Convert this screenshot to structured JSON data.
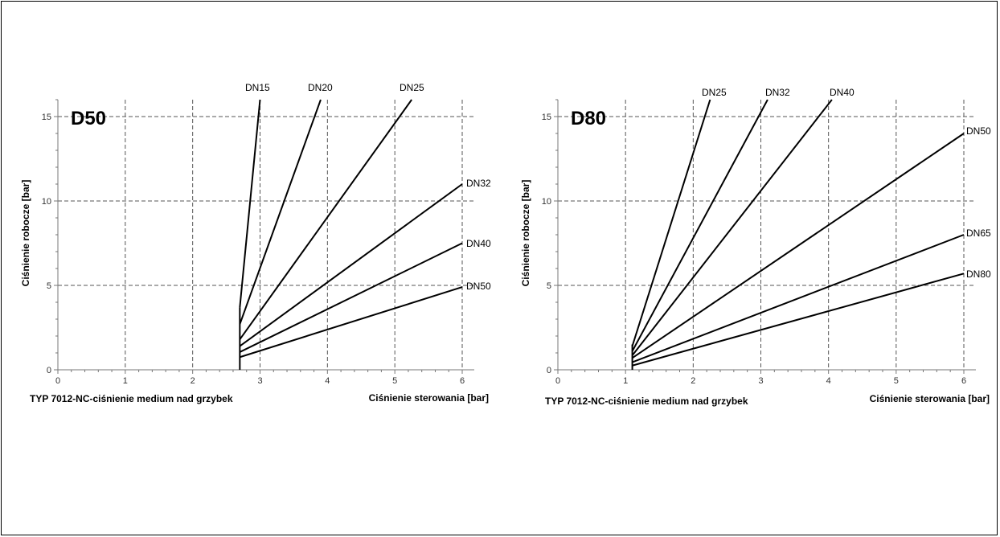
{
  "chart_data": [
    {
      "type": "line",
      "title": "D50",
      "subtitle": "TYP 7012-NC-ciśnienie medium nad grzybek",
      "xlabel": "Ciśnienie sterowania  [bar]",
      "ylabel": "Ciśnienie robocze [bar]",
      "xlim": [
        0,
        6
      ],
      "ylim": [
        0,
        16
      ],
      "xticks": [
        "0",
        "1",
        "2",
        "3",
        "4",
        "5",
        "6"
      ],
      "yticks": [
        "0",
        "5",
        "10",
        "15"
      ],
      "grid": true,
      "base_segment": {
        "x": [
          2.7,
          2.7
        ],
        "y": [
          0,
          3.7
        ]
      },
      "series": [
        {
          "name": "DN15",
          "x": [
            2.7,
            3.0
          ],
          "y": [
            3.7,
            16
          ]
        },
        {
          "name": "DN20",
          "x": [
            2.7,
            3.9
          ],
          "y": [
            2.7,
            16
          ]
        },
        {
          "name": "DN25",
          "x": [
            2.7,
            5.25
          ],
          "y": [
            1.8,
            16
          ]
        },
        {
          "name": "DN32",
          "x": [
            2.7,
            6.0
          ],
          "y": [
            1.4,
            11
          ]
        },
        {
          "name": "DN40",
          "x": [
            2.7,
            6.0
          ],
          "y": [
            1.05,
            7.5
          ]
        },
        {
          "name": "DN50",
          "x": [
            2.7,
            6.0
          ],
          "y": [
            0.75,
            4.9
          ]
        }
      ]
    },
    {
      "type": "line",
      "title": "D80",
      "subtitle": "TYP 7012-NC-ciśnienie medium nad grzybek",
      "xlabel": "Ciśnienie sterowania  [bar]",
      "ylabel": "Ciśnienie robocze [bar]",
      "xlim": [
        0,
        6
      ],
      "ylim": [
        0,
        16
      ],
      "xticks": [
        "0",
        "1",
        "2",
        "3",
        "4",
        "5",
        "6"
      ],
      "yticks": [
        "0",
        "5",
        "10",
        "15"
      ],
      "grid": true,
      "base_segment": {
        "x": [
          1.1,
          1.1
        ],
        "y": [
          0,
          1.5
        ]
      },
      "series": [
        {
          "name": "DN25",
          "x": [
            1.1,
            2.25
          ],
          "y": [
            1.4,
            16
          ]
        },
        {
          "name": "DN32",
          "x": [
            1.1,
            3.1
          ],
          "y": [
            1.1,
            16
          ]
        },
        {
          "name": "DN40",
          "x": [
            1.1,
            4.05
          ],
          "y": [
            0.85,
            16
          ]
        },
        {
          "name": "DN50",
          "x": [
            1.1,
            6.0
          ],
          "y": [
            0.7,
            14
          ]
        },
        {
          "name": "DN65",
          "x": [
            1.1,
            6.0
          ],
          "y": [
            0.45,
            8.0
          ]
        },
        {
          "name": "DN80",
          "x": [
            1.1,
            6.0
          ],
          "y": [
            0.25,
            5.7
          ]
        }
      ]
    }
  ]
}
